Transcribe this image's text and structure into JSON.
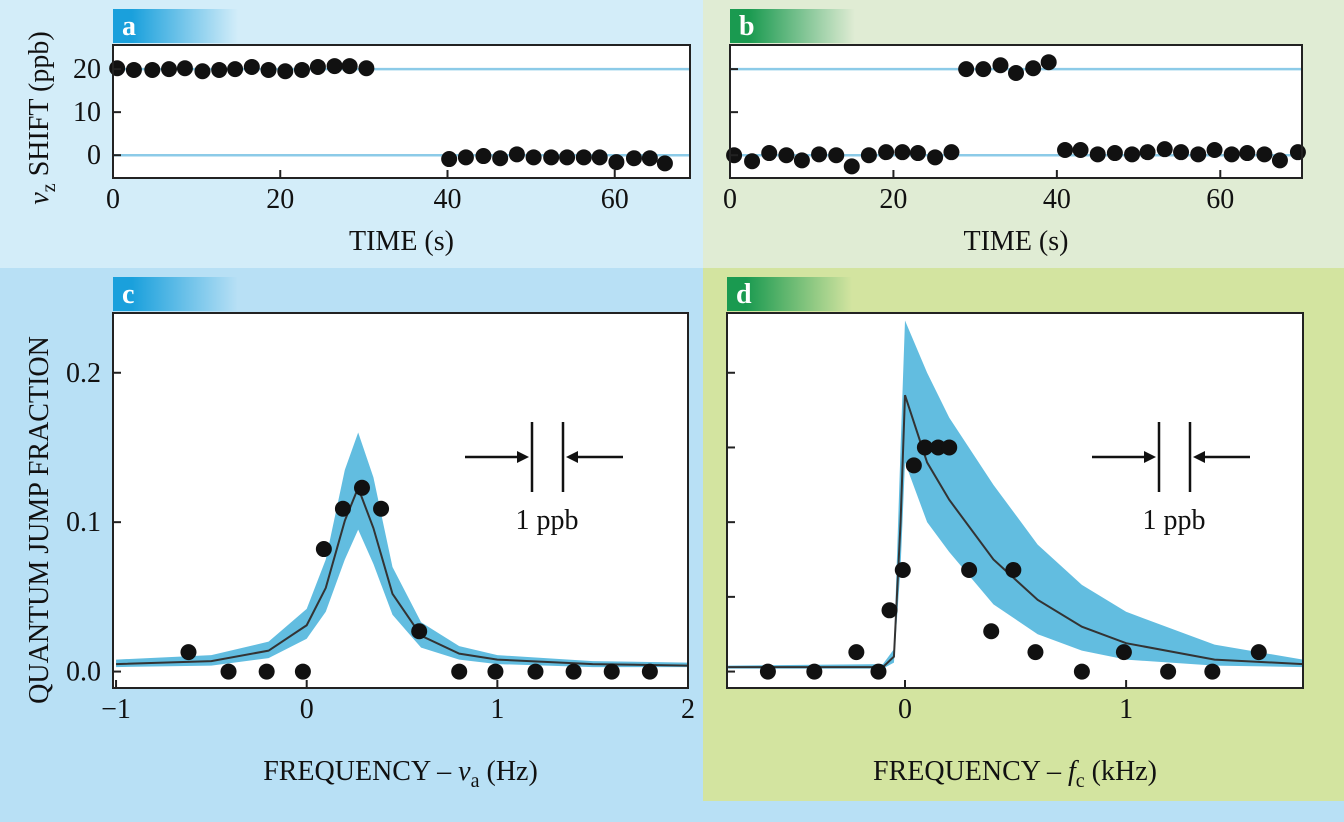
{
  "chart_data": [
    {
      "type": "scatter",
      "panel": "a",
      "ylabel": [
        "ν",
        "z",
        " SHIFT (ppb)"
      ],
      "xlabel": "TIME (s)",
      "xlim": [
        0,
        69
      ],
      "ylim": [
        -5.3,
        25.6
      ],
      "xticks": [
        0,
        20,
        40,
        60
      ],
      "yticks": [
        0,
        10,
        20
      ],
      "reference_lines": [
        0,
        20
      ],
      "reference_color": "#8ccbe8",
      "panel_color": "#1aa0dc",
      "series": [
        {
          "kind": "points",
          "color": "#111111",
          "x": [
            0.5,
            2.5,
            4.7,
            6.7,
            8.6,
            10.7,
            12.7,
            14.6,
            16.6,
            18.6,
            20.6,
            22.6,
            24.5,
            26.5,
            28.3,
            30.3,
            40.2,
            42.2,
            44.3,
            46.3,
            48.3,
            50.3,
            52.4,
            54.3,
            56.3,
            58.2,
            60.2,
            62.3,
            64.2,
            66.0
          ],
          "values": [
            20.2,
            19.8,
            19.8,
            20.0,
            20.2,
            19.5,
            19.8,
            20.0,
            20.5,
            19.8,
            19.5,
            19.8,
            20.5,
            20.7,
            20.7,
            20.2,
            -0.9,
            -0.5,
            -0.2,
            -0.7,
            0.2,
            -0.5,
            -0.5,
            -0.5,
            -0.5,
            -0.5,
            -1.6,
            -0.7,
            -0.7,
            -1.9
          ]
        }
      ]
    },
    {
      "type": "scatter",
      "panel": "b",
      "xlabel": "TIME (s)",
      "xlim": [
        0,
        70
      ],
      "ylim": [
        -5.3,
        25.6
      ],
      "xticks": [
        0,
        20,
        40,
        60
      ],
      "yticks": [
        0,
        10,
        20
      ],
      "ytick_labels": false,
      "reference_lines": [
        0,
        20
      ],
      "reference_color": "#8ccbe8",
      "panel_color": "#1a9a50",
      "series": [
        {
          "kind": "points",
          "color": "#111111",
          "x": [
            0.5,
            2.7,
            4.8,
            6.9,
            8.8,
            10.9,
            13.0,
            14.9,
            17.0,
            19.1,
            21.1,
            23.0,
            25.1,
            27.1,
            28.9,
            31.0,
            33.1,
            35.0,
            37.1,
            39.0,
            41.0,
            42.9,
            45.0,
            47.1,
            49.2,
            51.1,
            53.2,
            55.2,
            57.3,
            59.3,
            61.4,
            63.3,
            65.4,
            67.3,
            69.5
          ],
          "values": [
            0,
            -1.4,
            0.5,
            0,
            -1.2,
            0.2,
            0,
            -2.6,
            0,
            0.7,
            0.7,
            0.5,
            -0.5,
            0.7,
            20.0,
            20.0,
            20.9,
            19.1,
            20.2,
            21.6,
            1.2,
            1.2,
            0.2,
            0.5,
            0.2,
            0.7,
            1.4,
            0.7,
            0.2,
            1.2,
            0.2,
            0.5,
            0.2,
            -1.2,
            0.7
          ]
        }
      ]
    },
    {
      "type": "scatter",
      "panel": "c",
      "ylabel": "QUANTUM JUMP FRACTION",
      "xlabel": [
        "FREQUENCY – ",
        "ν",
        "a",
        " (Hz)"
      ],
      "annotation": "1 ppb",
      "xlim": [
        -1.016,
        2.0
      ],
      "ylim": [
        -0.011,
        0.24
      ],
      "xticks": [
        {
          "value": -1,
          "label": "−1"
        },
        0,
        1,
        2
      ],
      "yticks": [
        {
          "value": 0,
          "label": "0.0"
        },
        0.1,
        0.2
      ],
      "panel_color": "#1aa0dc",
      "series": [
        {
          "kind": "band",
          "color": "#62bde0",
          "x": [
            -1,
            -0.5,
            -0.2,
            0,
            0.1,
            0.2,
            0.27,
            0.35,
            0.45,
            0.6,
            0.8,
            1.0,
            1.5,
            2.0
          ],
          "values": [
            0.008,
            0.011,
            0.02,
            0.042,
            0.075,
            0.135,
            0.16,
            0.13,
            0.07,
            0.033,
            0.017,
            0.011,
            0.007,
            0.006
          ],
          "lower": [
            0.003,
            0.004,
            0.009,
            0.022,
            0.04,
            0.075,
            0.095,
            0.072,
            0.038,
            0.016,
            0.008,
            0.005,
            0.003,
            0.003
          ]
        },
        {
          "kind": "line",
          "color": "#333333",
          "x": [
            -1,
            -0.5,
            -0.2,
            0,
            0.1,
            0.2,
            0.27,
            0.35,
            0.45,
            0.6,
            0.8,
            1.0,
            1.5,
            2.0
          ],
          "values": [
            0.005,
            0.007,
            0.014,
            0.031,
            0.056,
            0.101,
            0.123,
            0.096,
            0.052,
            0.024,
            0.012,
            0.008,
            0.005,
            0.004
          ]
        },
        {
          "kind": "points",
          "color": "#111111",
          "x": [
            -0.62,
            -0.41,
            -0.21,
            -0.02,
            0.09,
            0.19,
            0.29,
            0.39,
            0.59,
            0.8,
            0.99,
            1.2,
            1.4,
            1.6,
            1.8
          ],
          "values": [
            0.013,
            0,
            0,
            0,
            0.082,
            0.109,
            0.123,
            0.109,
            0.027,
            0,
            0,
            0,
            0,
            0,
            0
          ]
        }
      ]
    },
    {
      "type": "scatter",
      "panel": "d",
      "xlabel": [
        "FREQUENCY – ",
        "f",
        "c",
        " (kHz)"
      ],
      "annotation": "1 ppb",
      "xlim": [
        -0.805,
        1.8
      ],
      "ylim": [
        -0.011,
        0.24
      ],
      "xticks": [
        0,
        1
      ],
      "yticks": [
        0,
        0.05,
        0.1,
        0.15,
        0.2
      ],
      "ytick_labels": false,
      "panel_color": "#1a9a50",
      "series": [
        {
          "kind": "band",
          "color": "#62bde0",
          "x": [
            -0.8,
            -0.1,
            -0.05,
            -0.02,
            0,
            0.1,
            0.2,
            0.4,
            0.6,
            0.8,
            1.0,
            1.4,
            1.8
          ],
          "values": [
            0.004,
            0.005,
            0.015,
            0.15,
            0.235,
            0.2,
            0.17,
            0.125,
            0.085,
            0.058,
            0.04,
            0.018,
            0.008
          ],
          "lower": [
            0.002,
            0.002,
            0.006,
            0.07,
            0.14,
            0.1,
            0.08,
            0.045,
            0.025,
            0.014,
            0.008,
            0.004,
            0.003
          ]
        },
        {
          "kind": "line",
          "color": "#333333",
          "x": [
            -0.8,
            -0.1,
            -0.05,
            -0.02,
            0,
            0.1,
            0.2,
            0.4,
            0.6,
            0.8,
            1.0,
            1.4,
            1.8
          ],
          "values": [
            0.003,
            0.003,
            0.01,
            0.1,
            0.185,
            0.14,
            0.115,
            0.075,
            0.048,
            0.03,
            0.019,
            0.008,
            0.005
          ]
        },
        {
          "kind": "points",
          "color": "#111111",
          "x": [
            -0.62,
            -0.41,
            -0.22,
            -0.12,
            -0.07,
            -0.01,
            0.04,
            0.09,
            0.15,
            0.2,
            0.29,
            0.39,
            0.49,
            0.59,
            0.8,
            0.99,
            1.19,
            1.39,
            1.6
          ],
          "values": [
            0,
            0,
            0.013,
            0,
            0.041,
            0.068,
            0.138,
            0.15,
            0.15,
            0.15,
            0.068,
            0.027,
            0.068,
            0.013,
            0,
            0.013,
            0,
            0,
            0.013
          ]
        }
      ]
    }
  ]
}
